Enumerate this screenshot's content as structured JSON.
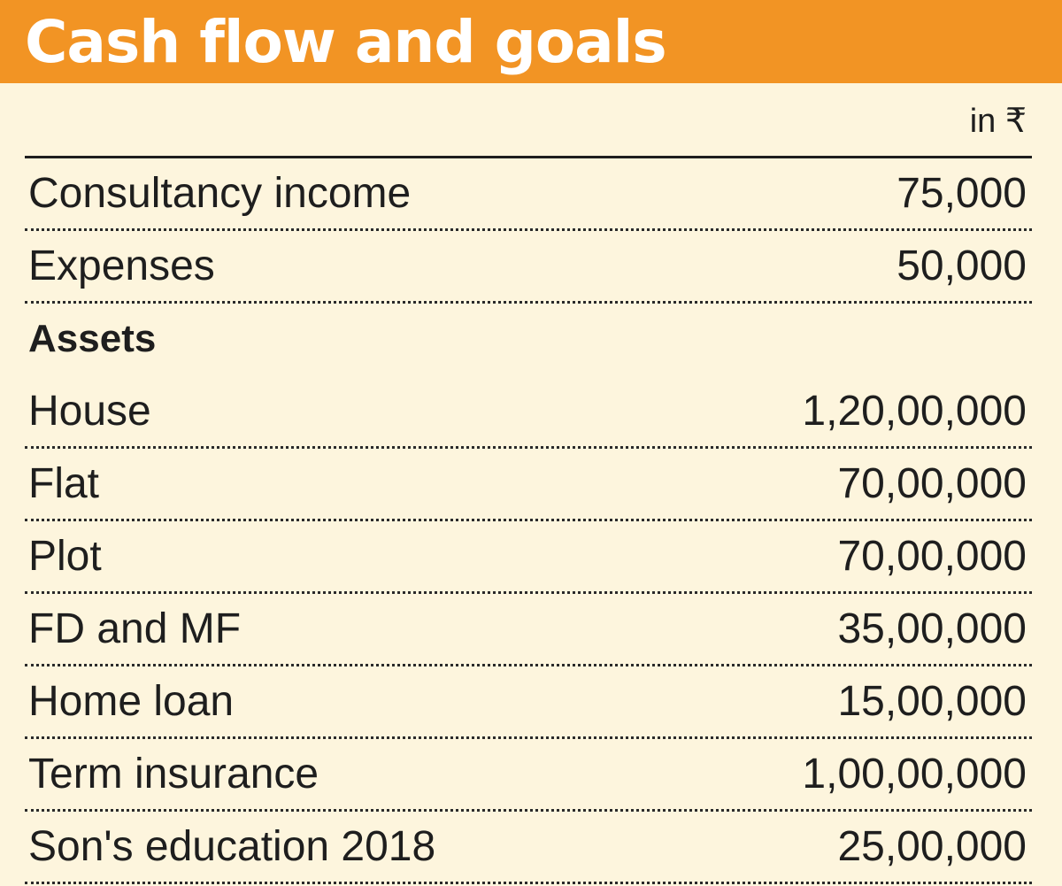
{
  "header": {
    "title": "Cash flow and goals"
  },
  "unit_note": "in ₹",
  "rows": [
    {
      "label": "Consultancy income",
      "value": "75,000"
    },
    {
      "label": "Expenses",
      "value": "50,000"
    },
    {
      "label": "Assets",
      "value": "",
      "section": true
    },
    {
      "label": "House",
      "value": "1,20,00,000"
    },
    {
      "label": "Flat",
      "value": "70,00,000"
    },
    {
      "label": "Plot",
      "value": "70,00,000"
    },
    {
      "label": "FD and MF",
      "value": "35,00,000"
    },
    {
      "label": "Home loan",
      "value": "15,00,000"
    },
    {
      "label": "Term insurance",
      "value": "1,00,00,000"
    },
    {
      "label": "Son's education 2018",
      "value": "25,00,000"
    }
  ],
  "colors": {
    "title_bar": "#f29424",
    "background": "#fdf5dd",
    "text": "#1e1e1e"
  }
}
